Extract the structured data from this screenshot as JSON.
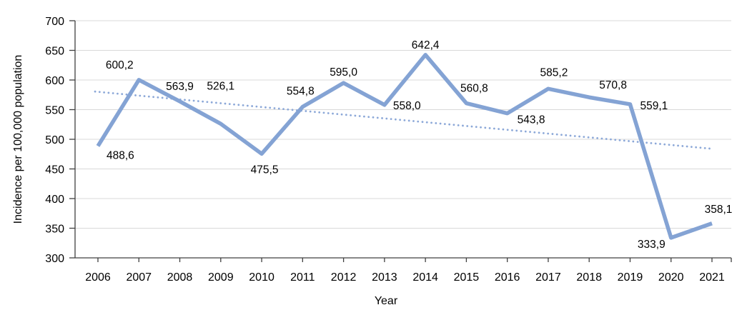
{
  "chart_data": {
    "type": "line",
    "title": "",
    "xlabel": "Year",
    "ylabel": "Incidence per 100,000 population",
    "categories": [
      "2006",
      "2007",
      "2008",
      "2009",
      "2010",
      "2011",
      "2012",
      "2013",
      "2014",
      "2015",
      "2016",
      "2017",
      "2018",
      "2019",
      "2020",
      "2021"
    ],
    "series": [
      {
        "name": "Incidence per 100,000 population",
        "values": [
          488.6,
          600.2,
          563.9,
          526.1,
          475.5,
          554.8,
          595.0,
          558.0,
          642.4,
          560.8,
          543.8,
          585.2,
          570.8,
          559.1,
          333.9,
          358.1
        ]
      }
    ],
    "data_labels": [
      "488,6",
      "600,2",
      "563,9",
      "526,1",
      "475,5",
      "554,8",
      "595,0",
      "558,0",
      "642,4",
      "560,8",
      "543,8",
      "585,2",
      "570,8",
      "559,1",
      "333,9",
      "358,1"
    ],
    "trendline": {
      "style": "dotted",
      "start_value": 580.5,
      "end_value": 484.0
    },
    "ylim": [
      300,
      700
    ],
    "y_ticks": [
      300,
      350,
      400,
      450,
      500,
      550,
      600,
      650,
      700
    ],
    "grid": true,
    "legend": "none",
    "decimal_separator": ",",
    "colors": {
      "series_line": "#84A3D4",
      "trend_line": "#8CA8D8",
      "gridline": "#D9D9D9",
      "axis_line": "#404040",
      "text": "#000000",
      "background": "#FFFFFF"
    }
  }
}
